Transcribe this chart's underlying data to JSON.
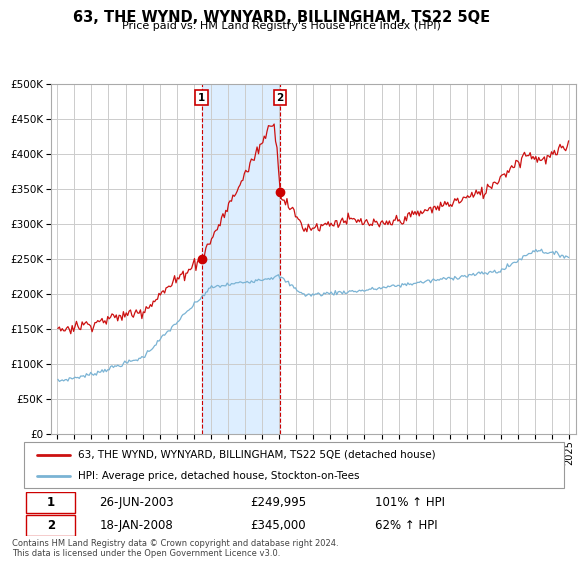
{
  "title": "63, THE WYND, WYNYARD, BILLINGHAM, TS22 5QE",
  "subtitle": "Price paid vs. HM Land Registry's House Price Index (HPI)",
  "legend_line1": "63, THE WYND, WYNYARD, BILLINGHAM, TS22 5QE (detached house)",
  "legend_line2": "HPI: Average price, detached house, Stockton-on-Tees",
  "sale1_label": "1",
  "sale1_date": "26-JUN-2003",
  "sale1_price": "£249,995",
  "sale1_hpi": "101% ↑ HPI",
  "sale2_label": "2",
  "sale2_date": "18-JAN-2008",
  "sale2_price": "£345,000",
  "sale2_hpi": "62% ↑ HPI",
  "footer": "Contains HM Land Registry data © Crown copyright and database right 2024.\nThis data is licensed under the Open Government Licence v3.0.",
  "ylim_min": 0,
  "ylim_max": 500000,
  "grid_color": "#cccccc",
  "hpi_line_color": "#7ab3d4",
  "price_line_color": "#cc1111",
  "highlight_bg_color": "#ddeeff",
  "marker_color": "#cc0000",
  "vline_color": "#cc0000"
}
